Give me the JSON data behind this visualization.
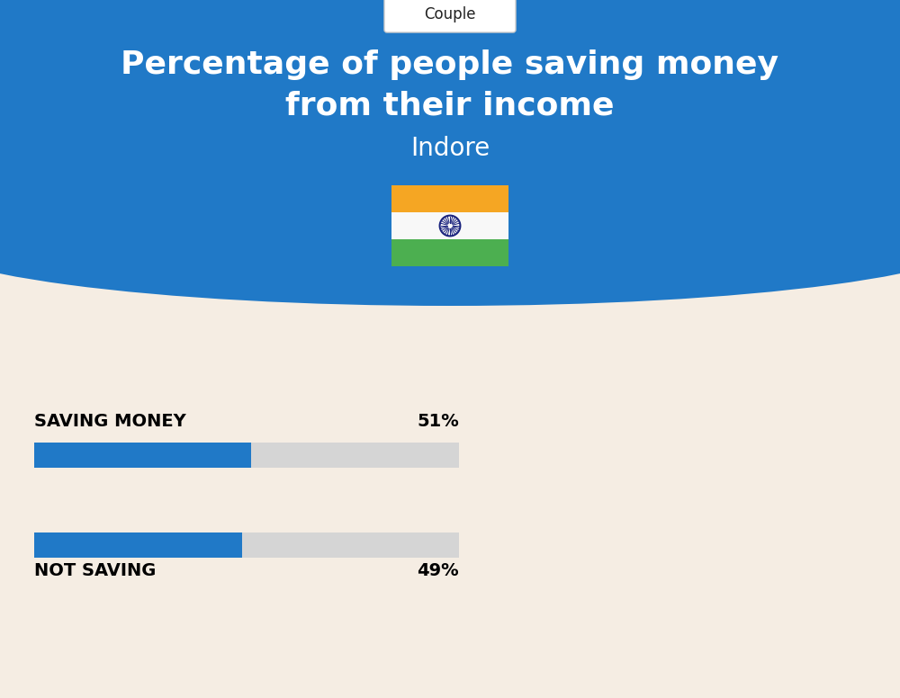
{
  "title_line1": "Percentage of people saving money",
  "title_line2": "from their income",
  "subtitle": "Indore",
  "tab_label": "Couple",
  "bg_color_top": "#2079C7",
  "bg_color_bottom": "#F5EDE3",
  "bar_label1": "SAVING MONEY",
  "bar_value1": 51,
  "bar_label2": "NOT SAVING",
  "bar_value2": 49,
  "bar_color_fill": "#2079C7",
  "bar_color_empty": "#D5D5D5",
  "bar_max": 100,
  "title_color": "#FFFFFF",
  "subtitle_color": "#FFFFFF",
  "label_color": "#000000",
  "value_color": "#000000",
  "tab_color": "#222222",
  "tab_bg": "#FFFFFF",
  "flag_saffron": "#F5A623",
  "flag_white": "#F8F8F8",
  "flag_green": "#4CAF50",
  "flag_ashoka_color": "#1A237E",
  "fig_width": 10.0,
  "fig_height": 7.76
}
